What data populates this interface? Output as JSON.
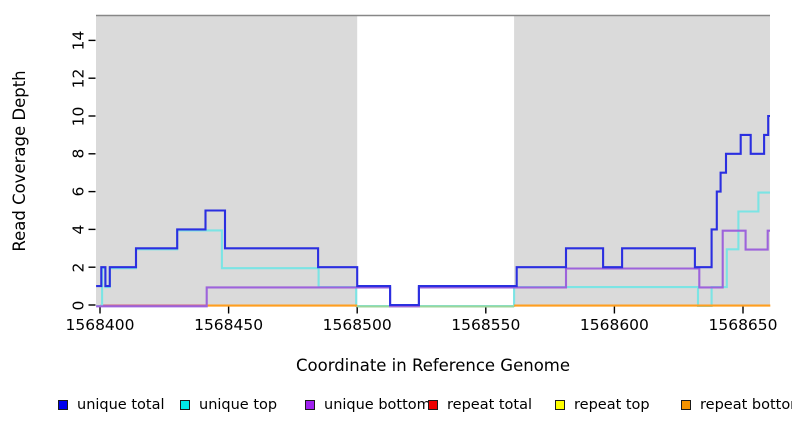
{
  "chart_data": {
    "type": "line",
    "subtype": "step-coverage",
    "title": "",
    "xlabel": "Coordinate in Reference Genome",
    "ylabel": "Read Coverage Depth",
    "xlim": [
      1568398,
      1568661
    ],
    "ylim": [
      0,
      15
    ],
    "x_ticks": [
      1568400,
      1568450,
      1568500,
      1568550,
      1568600,
      1568650
    ],
    "y_ticks": [
      0,
      2,
      4,
      6,
      8,
      10,
      12,
      14
    ],
    "grid": false,
    "panel_background": "#DADADA",
    "panel_border_top": "#878787",
    "unshaded_gap": {
      "from": 1568500,
      "to": 1568561,
      "zero_line_color": "#9BD69B"
    },
    "series": [
      {
        "name": "unique total",
        "color": "#2B2FE0",
        "steps": [
          [
            1568398.5,
            1
          ],
          [
            1568400.5,
            2
          ],
          [
            1568402.1,
            1
          ],
          [
            1568403.8,
            2
          ],
          [
            1568414,
            3
          ],
          [
            1568430,
            4
          ],
          [
            1568441,
            5
          ],
          [
            1568448.6,
            3
          ],
          [
            1568484.8,
            2
          ],
          [
            1568500,
            1
          ],
          [
            1568512.8,
            0
          ],
          [
            1568524,
            1
          ],
          [
            1568562,
            2
          ],
          [
            1568581.2,
            3
          ],
          [
            1568595.6,
            2
          ],
          [
            1568603,
            3
          ],
          [
            1568631.3,
            2
          ],
          [
            1568637.8,
            4
          ],
          [
            1568639.8,
            6
          ],
          [
            1568641.3,
            7
          ],
          [
            1568643.4,
            8
          ],
          [
            1568649.1,
            9
          ],
          [
            1568653,
            8
          ],
          [
            1568658.2,
            9
          ],
          [
            1568659.8,
            10
          ],
          [
            1568660.5,
            10
          ]
        ]
      },
      {
        "name": "unique top",
        "color": "#7BE4E4",
        "steps": [
          [
            1568398.6,
            0
          ],
          [
            1568400.8,
            2
          ],
          [
            1568402.1,
            1
          ],
          [
            1568403.8,
            2
          ],
          [
            1568414,
            3
          ],
          [
            1568430,
            4
          ],
          [
            1568447.4,
            2
          ],
          [
            1568485,
            1
          ],
          [
            1568499.6,
            0
          ],
          [
            1568561,
            1
          ],
          [
            1568632.5,
            0
          ],
          [
            1568637.8,
            1
          ],
          [
            1568643.7,
            3
          ],
          [
            1568648.2,
            5
          ],
          [
            1568656,
            6
          ],
          [
            1568660.5,
            6
          ]
        ]
      },
      {
        "name": "unique bottom",
        "color": "#9D63DB",
        "steps": [
          [
            1568398.5,
            0
          ],
          [
            1568441.5,
            1
          ],
          [
            1568512.8,
            0
          ],
          [
            1568524,
            1
          ],
          [
            1568581.2,
            2
          ],
          [
            1568633,
            1
          ],
          [
            1568642.1,
            4
          ],
          [
            1568651,
            3
          ],
          [
            1568659.6,
            4
          ],
          [
            1568660.5,
            4
          ]
        ]
      },
      {
        "name": "repeat total",
        "color": "#CE6183",
        "steps": [
          [
            1568400.2,
            0
          ],
          [
            1568441.5,
            0
          ]
        ]
      },
      {
        "name": "repeat top",
        "color": "#FFFF00",
        "steps": []
      },
      {
        "name": "repeat bottom",
        "color": "#FF9E1F",
        "paths": [
          [
            [
              1568441.5,
              0
            ],
            [
              1568500,
              0
            ]
          ],
          [
            [
              1568561,
              0
            ],
            [
              1568660.6,
              0
            ]
          ]
        ]
      }
    ]
  },
  "x_axis": {
    "title": "Coordinate in Reference Genome"
  },
  "y_axis": {
    "title": "Read Coverage Depth"
  },
  "legend": {
    "items": [
      {
        "label": "unique total",
        "color": "#0000EE"
      },
      {
        "label": "unique top",
        "color": "#00E8E8"
      },
      {
        "label": "unique bottom",
        "color": "#A021F0"
      },
      {
        "label": "repeat total",
        "color": "#EE0000"
      },
      {
        "label": "repeat top",
        "color": "#FFFF00"
      },
      {
        "label": "repeat bottom",
        "color": "#F59300"
      }
    ]
  }
}
